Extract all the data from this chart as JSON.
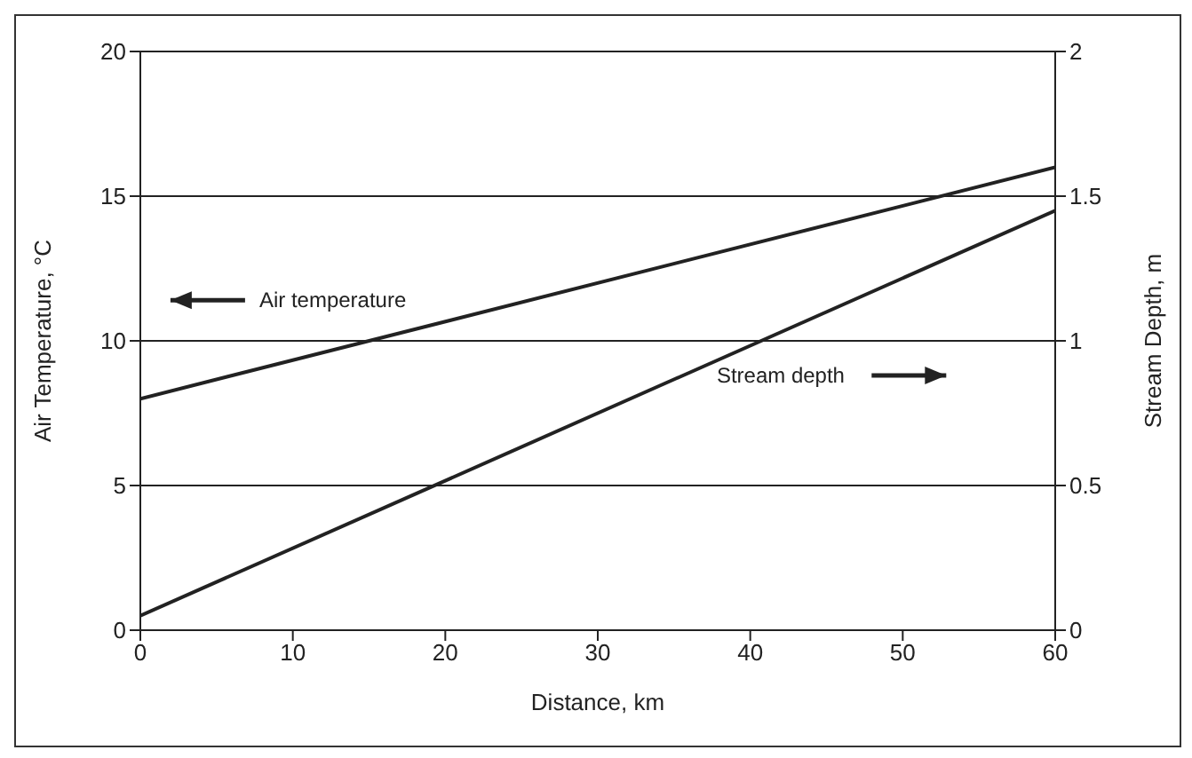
{
  "chart_data": {
    "type": "line",
    "xlabel": "Distance, km",
    "ylabel": "Air Temperature, °C",
    "y2label": "Stream Depth, m",
    "x": [
      0,
      60
    ],
    "series": [
      {
        "color": "#222222",
        "values": [
          8,
          16
        ]
      },
      {
        "color": "#222222",
        "values": [
          0.05,
          1.45
        ],
        "axis": "y2"
      }
    ],
    "xlim": [
      0,
      60
    ],
    "xticks": [
      0,
      10,
      20,
      30,
      40,
      50,
      60
    ],
    "ylim": [
      0,
      20
    ],
    "yticks": [
      0,
      5,
      10,
      15,
      20
    ],
    "y2lim": [
      0,
      2
    ],
    "y2ticks": [
      0,
      0.5,
      1,
      1.5,
      2
    ],
    "grid": "y",
    "marker": "none",
    "line_style": "solid",
    "annotations": [
      "Air temperature",
      "Stream depth"
    ]
  }
}
